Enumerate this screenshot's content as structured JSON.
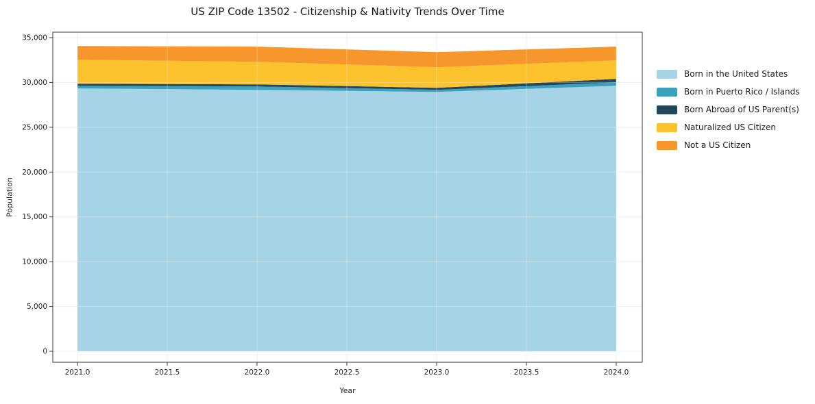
{
  "chart_data": {
    "type": "area",
    "stacked": true,
    "title": "US ZIP Code 13502 - Citizenship & Nativity Trends Over Time",
    "xlabel": "Year",
    "ylabel": "Population",
    "x": [
      2021,
      2022,
      2023,
      2024
    ],
    "series": [
      {
        "name": "Born in the United States",
        "color": "#a6d4e6",
        "values": [
          29330,
          29180,
          28940,
          29630
        ]
      },
      {
        "name": "Born in Puerto Rico / Islands",
        "color": "#3ba2bd",
        "values": [
          300,
          380,
          240,
          380
        ]
      },
      {
        "name": "Born Abroad of US Parent(s)",
        "color": "#24465a",
        "values": [
          230,
          230,
          220,
          390
        ]
      },
      {
        "name": "Naturalized US Citizen",
        "color": "#fcc22d",
        "values": [
          2680,
          2520,
          2300,
          2060
        ]
      },
      {
        "name": "Not a US Citizen",
        "color": "#f7962a",
        "values": [
          1530,
          1690,
          1680,
          1540
        ]
      }
    ],
    "stack_totals": [
      34070,
      34000,
      33380,
      34000
    ],
    "xlim": [
      2020.86,
      2024.14
    ],
    "ylim": [
      0,
      35000
    ],
    "xticks": [
      {
        "value": 2021.0,
        "label": "2021.0"
      },
      {
        "value": 2021.5,
        "label": "2021.5"
      },
      {
        "value": 2022.0,
        "label": "2022.0"
      },
      {
        "value": 2022.5,
        "label": "2022.5"
      },
      {
        "value": 2023.0,
        "label": "2023.0"
      },
      {
        "value": 2023.5,
        "label": "2023.5"
      },
      {
        "value": 2024.0,
        "label": "2024.0"
      }
    ],
    "yticks": [
      {
        "value": 0,
        "label": "0"
      },
      {
        "value": 5000,
        "label": "5,000"
      },
      {
        "value": 10000,
        "label": "10,000"
      },
      {
        "value": 15000,
        "label": "15,000"
      },
      {
        "value": 20000,
        "label": "20,000"
      },
      {
        "value": 25000,
        "label": "25,000"
      },
      {
        "value": 30000,
        "label": "30,000"
      },
      {
        "value": 35000,
        "label": "35,000"
      }
    ],
    "grid": true,
    "grid_color": "#e8e8e8",
    "legend_position": "right"
  }
}
